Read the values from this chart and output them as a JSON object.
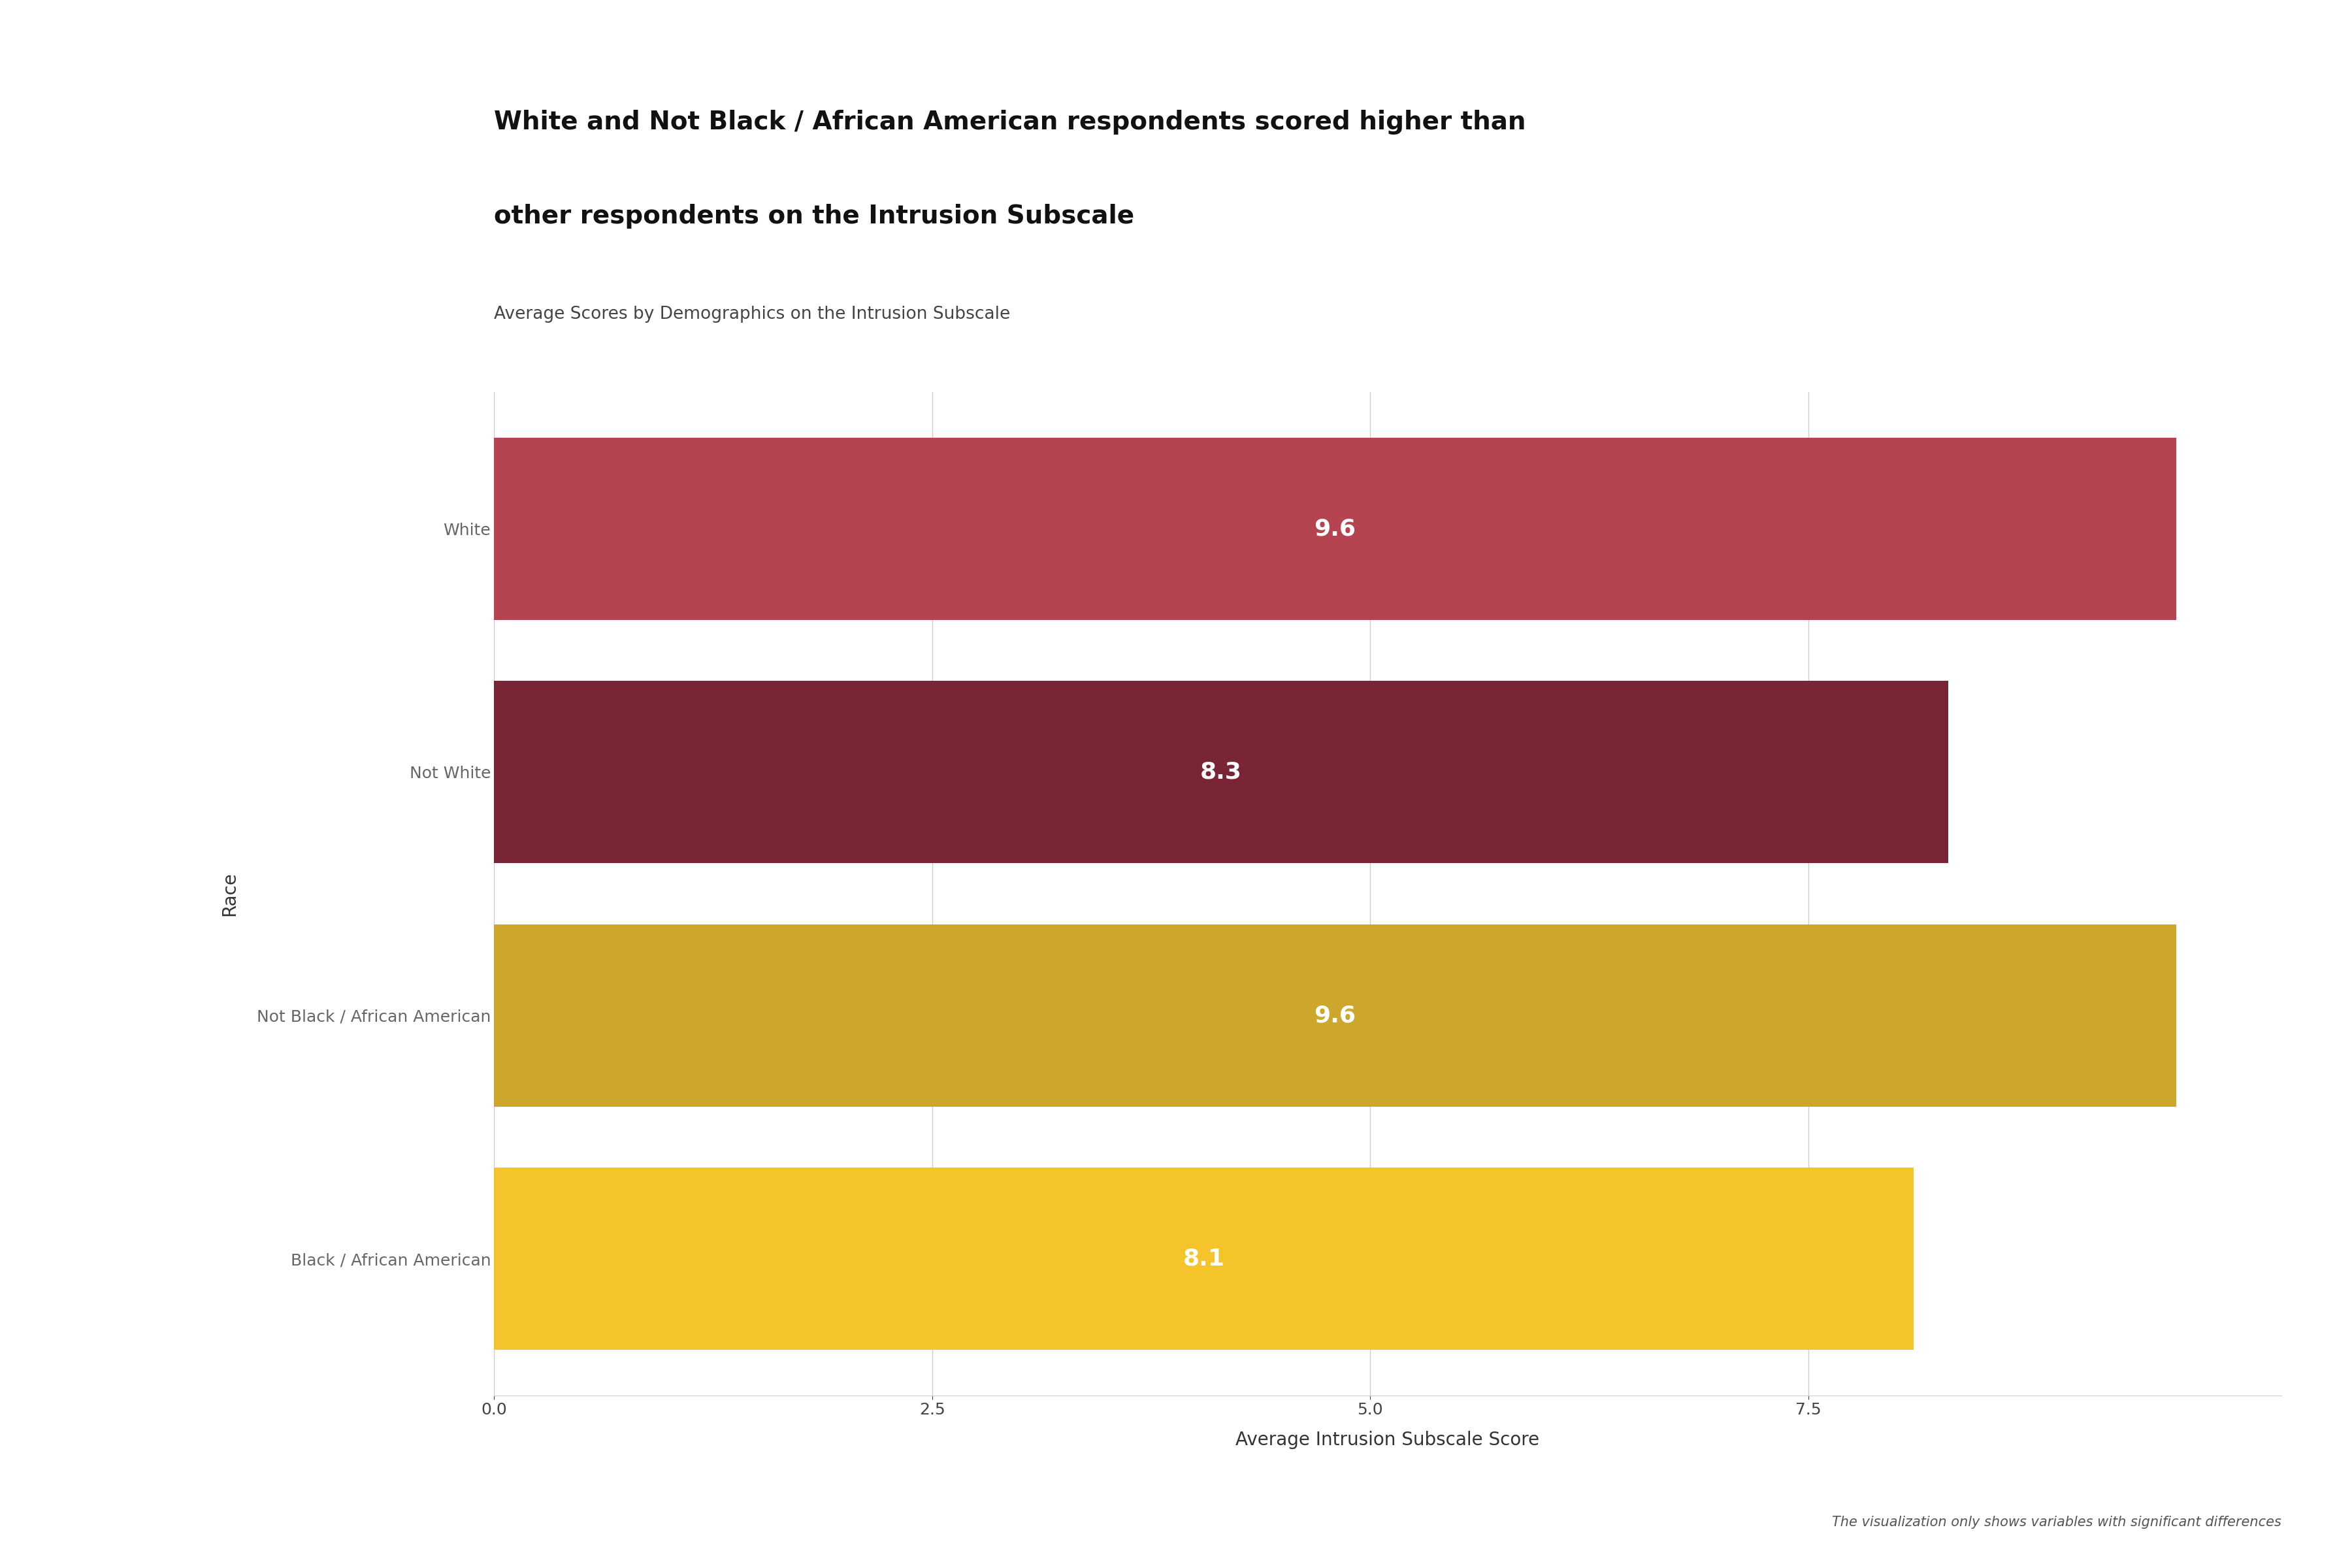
{
  "title_line1": "White and Not Black / African American respondents scored higher than",
  "title_line2": "other respondents on the Intrusion Subscale",
  "subtitle": "Average Scores by Demographics on the Intrusion Subscale",
  "footnote": "The visualization only shows variables with significant differences",
  "categories": [
    "Black / African American",
    "Not Black / African American",
    "Not White",
    "White"
  ],
  "values": [
    8.1,
    9.6,
    8.3,
    9.6
  ],
  "bar_colors": [
    "#F5C42A",
    "#CDA72B",
    "#7A2535",
    "#B54450"
  ],
  "xlabel": "Average Intrusion Subscale Score",
  "ylabel": "Race",
  "xlim": [
    0,
    10.2
  ],
  "xticks": [
    0.0,
    2.5,
    5.0,
    7.5
  ],
  "background_color": "#FFFFFF",
  "grid_color": "#CCCCCC",
  "label_color": "#FFFFFF",
  "title_fontsize": 28,
  "subtitle_fontsize": 19,
  "axis_label_fontsize": 20,
  "tick_fontsize": 18,
  "bar_label_fontsize": 26,
  "ytick_color": "#666666",
  "xtick_color": "#444444",
  "footnote_fontsize": 15,
  "footnote_color": "#555555"
}
